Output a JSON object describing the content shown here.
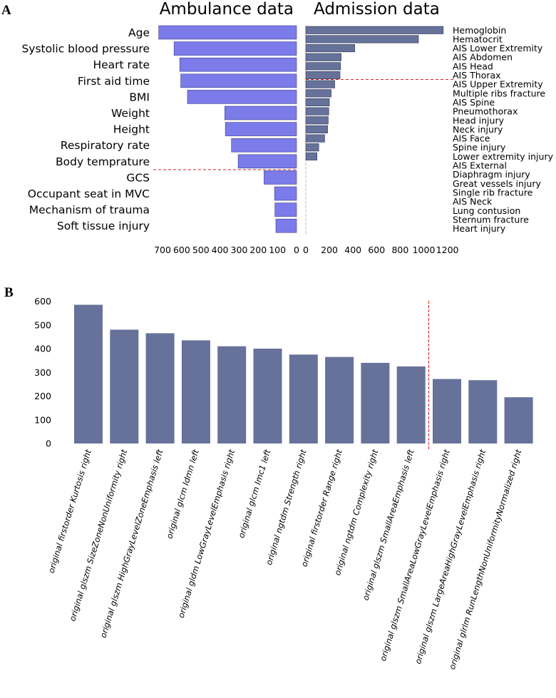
{
  "panel_a_label": "A",
  "panel_b_label": "B",
  "chart_data": [
    {
      "type": "bar",
      "orientation": "horizontal",
      "title": "Ambulance data",
      "categories": [
        "Age",
        "Systolic blood pressure",
        "Heart rate",
        "First aid time",
        "BMI",
        "Weight",
        "Height",
        "Respiratory rate",
        "Body temprature",
        "GCS",
        "Occupant seat in MVC",
        "Mechanism of trauma",
        "Soft tissue injury"
      ],
      "values": [
        720,
        640,
        610,
        605,
        570,
        375,
        372,
        340,
        305,
        170,
        115,
        113,
        108
      ],
      "xlim": [
        0,
        750
      ],
      "axis_direction": "reversed",
      "xticks": [
        "700",
        "600",
        "500",
        "400",
        "300",
        "200",
        "100",
        "0"
      ],
      "cutoff_after_index": 8,
      "bar_color": "#7b7bea"
    },
    {
      "type": "bar",
      "orientation": "horizontal",
      "title": "Admission data",
      "categories": [
        "Hemoglobin",
        "Hematocrit",
        "AIS Lower Extremity",
        "AIS Abdomen",
        "AIS Head",
        "AIS Thorax",
        "AIS Upper Extremity",
        "Multiple ribs fracture",
        "AIS Spine",
        "Pneumothorax",
        "Head injury",
        "Neck injury",
        "AIS Face",
        "Spine injury",
        "Lower extremity injury",
        "AIS External",
        "Diaphragm injury",
        "Great vessels injury",
        "Single rib fracture",
        "AIS Neck",
        "Lung contusion",
        "Sternum fracture",
        "Heart injury"
      ],
      "values": [
        1165,
        955,
        415,
        300,
        295,
        290,
        245,
        215,
        200,
        195,
        190,
        185,
        160,
        110,
        95,
        0,
        0,
        0,
        0,
        0,
        0,
        0,
        0
      ],
      "xlim": [
        0,
        1200
      ],
      "xticks": [
        "0",
        "200",
        "400",
        "600",
        "800",
        "1000",
        "1200"
      ],
      "cutoff_after_index": 5,
      "bar_color": "#66729a"
    },
    {
      "type": "bar",
      "orientation": "vertical",
      "title": "",
      "categories": [
        "original firstorder Kurtosis right",
        "original glszm SizeZoneNonUniformity right",
        "original glszm HighGrayLevelZoneEmphasis left",
        "original glcm Idmn left",
        "original gldm LowGrayLevelEmphasis right",
        "original glcm Imc1 left",
        "original ngtdm Strength right",
        "original firstorder Range right",
        "original ngtdm Complexity right",
        "original glszm SmallAreaEmphasis left",
        "original glszm SmallAreaLowGrayLevelEmphasis right",
        "original glszm LargeAreaHighGrayLevelEmphasis right",
        "original glrlm RunLengthNonUniformityNormalized right"
      ],
      "values": [
        585,
        480,
        465,
        435,
        410,
        400,
        375,
        365,
        340,
        325,
        272,
        267,
        195
      ],
      "ylim": [
        0,
        620
      ],
      "yticks": [
        "0",
        "100",
        "200",
        "300",
        "400",
        "500",
        "600"
      ],
      "cutoff_after_index": 9,
      "bar_color": "#66729a"
    }
  ]
}
